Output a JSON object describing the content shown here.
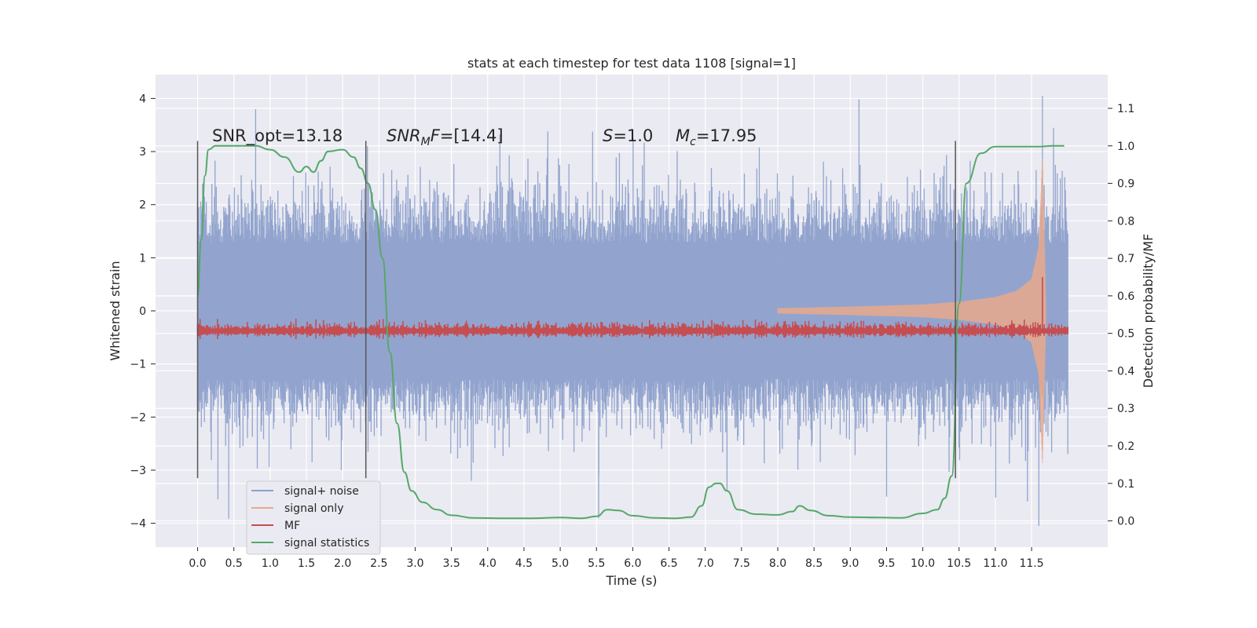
{
  "chart_data": {
    "type": "line",
    "title": "stats at each timestep for test data 1108 [signal=1]",
    "xlabel": "Time (s)",
    "ylabel": "Whitened strain",
    "y2label": "Detection probability/MF",
    "xlim": [
      -0.58,
      12.55
    ],
    "ylim": [
      -4.45,
      4.45
    ],
    "y2lim": [
      -0.07,
      1.19
    ],
    "xticks": [
      0.0,
      0.5,
      1.0,
      1.5,
      2.0,
      2.5,
      3.0,
      3.5,
      4.0,
      4.5,
      5.0,
      5.5,
      6.0,
      6.5,
      7.0,
      7.5,
      8.0,
      8.5,
      9.0,
      9.5,
      10.0,
      10.5,
      11.0,
      11.5
    ],
    "xtick_labels": [
      "0.0",
      "0.5",
      "1.0",
      "1.5",
      "2.0",
      "2.5",
      "3.0",
      "3.5",
      "4.0",
      "4.5",
      "5.0",
      "5.5",
      "6.0",
      "6.5",
      "7.0",
      "7.5",
      "8.0",
      "8.5",
      "9.0",
      "9.5",
      "10.0",
      "10.5",
      "11.0",
      "11.5"
    ],
    "yticks": [
      4,
      3,
      2,
      1,
      0,
      -1,
      -2,
      -3,
      -4
    ],
    "ytick_labels": [
      "4",
      "3",
      "2",
      "1",
      "0",
      "−1",
      "−2",
      "−3",
      "−4"
    ],
    "y2ticks": [
      1.1,
      1.0,
      0.9,
      0.8,
      0.7,
      0.6,
      0.5,
      0.4,
      0.3,
      0.2,
      0.1,
      0.0
    ],
    "y2tick_labels": [
      "1.1",
      "1.0",
      "0.9",
      "0.8",
      "0.7",
      "0.6",
      "0.5",
      "0.4",
      "0.3",
      "0.2",
      "0.1",
      "0.0"
    ],
    "grid": true,
    "legend_position": "lower-left",
    "vlines": [
      0.0,
      2.32,
      10.45
    ],
    "vline_range": [
      -3.15,
      3.2
    ],
    "annotations": {
      "snr_opt": "SNR_opt=13.18",
      "snr_mf": "=[14.4]",
      "s_value": "=1.0",
      "mc_value": "=17.95"
    },
    "series": [
      {
        "name": "signal+ noise",
        "color": "#8da0cb",
        "axis": "left",
        "style": "noise-band",
        "x_range": [
          0.0,
          12.0
        ],
        "typical_envelope": [
          1.7,
          1.9
        ],
        "max": 4.05,
        "min": -4.05
      },
      {
        "name": "signal only",
        "color": "#e8a98c",
        "axis": "left",
        "style": "chirp",
        "x": [
          8.0,
          9.0,
          10.0,
          10.5,
          11.0,
          11.3,
          11.5,
          11.6,
          11.65,
          11.7
        ],
        "envelope": [
          0.05,
          0.08,
          0.12,
          0.17,
          0.26,
          0.38,
          0.6,
          1.2,
          2.9,
          0.0
        ]
      },
      {
        "name": "MF",
        "color": "#c44e52",
        "axis": "right",
        "style": "thin-band",
        "x_range": [
          0.0,
          12.0
        ],
        "center": 0.505,
        "halfwidth": 0.012,
        "peak_x": 11.65,
        "peak_value": 0.65
      },
      {
        "name": "signal statistics",
        "color": "#55a868",
        "axis": "right",
        "style": "line",
        "x": [
          0.0,
          0.05,
          0.1,
          0.15,
          0.25,
          0.4,
          0.6,
          0.8,
          1.0,
          1.2,
          1.4,
          1.5,
          1.6,
          1.7,
          1.8,
          2.0,
          2.15,
          2.25,
          2.35,
          2.45,
          2.55,
          2.65,
          2.75,
          2.85,
          2.95,
          3.1,
          3.3,
          3.5,
          3.8,
          4.2,
          4.6,
          5.0,
          5.3,
          5.5,
          5.65,
          5.8,
          6.0,
          6.3,
          6.6,
          6.8,
          6.95,
          7.05,
          7.15,
          7.2,
          7.3,
          7.45,
          7.7,
          8.0,
          8.2,
          8.3,
          8.45,
          8.7,
          9.0,
          9.4,
          9.7,
          10.0,
          10.2,
          10.3,
          10.4,
          10.5,
          10.6,
          10.8,
          11.0,
          11.3,
          11.6,
          11.8,
          11.95
        ],
        "y": [
          0.6,
          0.75,
          0.92,
          0.99,
          1.0,
          1.0,
          1.0,
          1.0,
          0.99,
          0.97,
          0.93,
          0.945,
          0.93,
          0.96,
          0.985,
          0.99,
          0.97,
          0.94,
          0.9,
          0.83,
          0.7,
          0.45,
          0.26,
          0.13,
          0.08,
          0.05,
          0.03,
          0.015,
          0.008,
          0.007,
          0.007,
          0.009,
          0.007,
          0.012,
          0.03,
          0.028,
          0.014,
          0.008,
          0.007,
          0.01,
          0.04,
          0.09,
          0.1,
          0.1,
          0.08,
          0.03,
          0.018,
          0.016,
          0.025,
          0.04,
          0.028,
          0.014,
          0.01,
          0.009,
          0.008,
          0.02,
          0.03,
          0.06,
          0.12,
          0.58,
          0.9,
          0.98,
          0.998,
          0.998,
          0.998,
          1.0,
          1.0
        ]
      }
    ]
  }
}
